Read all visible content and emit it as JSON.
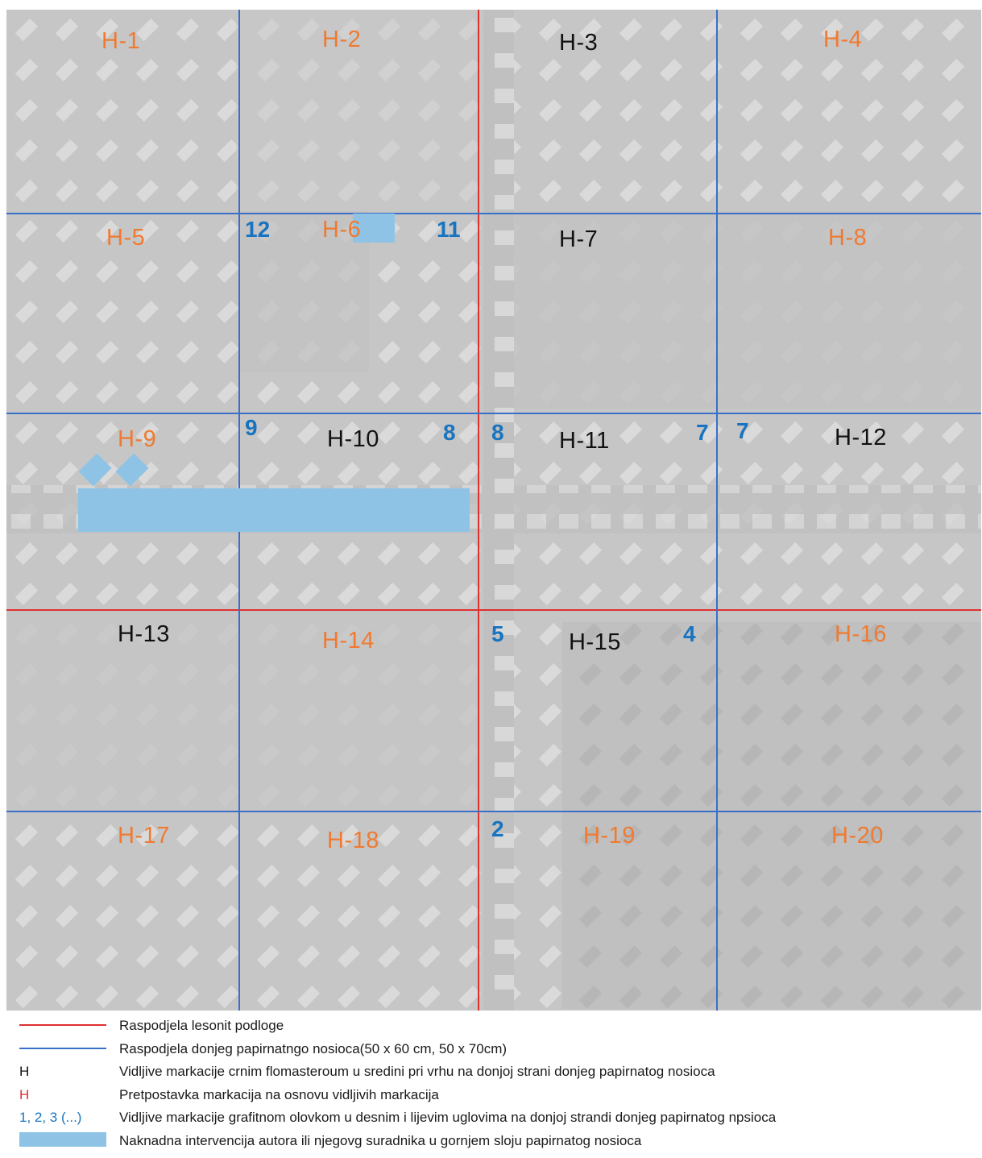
{
  "colors": {
    "red_line": "#e03030",
    "blue_line": "#3a6fc9",
    "orange_label": "#f07a30",
    "black_label": "#111111",
    "blue_number": "#1874c0",
    "intervention": "#8ec3e6"
  },
  "labels": [
    {
      "id": "H-1",
      "text": "H-1",
      "color": "orange"
    },
    {
      "id": "H-2",
      "text": "H-2",
      "color": "orange"
    },
    {
      "id": "H-3",
      "text": "H-3",
      "color": "black"
    },
    {
      "id": "H-4",
      "text": "H-4",
      "color": "orange"
    },
    {
      "id": "H-5",
      "text": "H-5",
      "color": "orange"
    },
    {
      "id": "H-6",
      "text": "H-6",
      "color": "orange"
    },
    {
      "id": "H-7",
      "text": "H-7",
      "color": "black"
    },
    {
      "id": "H-8",
      "text": "H-8",
      "color": "orange"
    },
    {
      "id": "H-9",
      "text": "H-9",
      "color": "orange"
    },
    {
      "id": "H-10",
      "text": "H-10",
      "color": "black"
    },
    {
      "id": "H-11",
      "text": "H-11",
      "color": "black"
    },
    {
      "id": "H-12",
      "text": "H-12",
      "color": "black"
    },
    {
      "id": "H-13",
      "text": "H-13",
      "color": "black"
    },
    {
      "id": "H-14",
      "text": "H-14",
      "color": "orange"
    },
    {
      "id": "H-15",
      "text": "H-15",
      "color": "black"
    },
    {
      "id": "H-16",
      "text": "H-16",
      "color": "orange"
    },
    {
      "id": "H-17",
      "text": "H-17",
      "color": "orange"
    },
    {
      "id": "H-18",
      "text": "H-18",
      "color": "orange"
    },
    {
      "id": "H-19",
      "text": "H-19",
      "color": "orange"
    },
    {
      "id": "H-20",
      "text": "H-20",
      "color": "orange"
    }
  ],
  "numbers": [
    "12",
    "11",
    "9",
    "8",
    "8",
    "7",
    "7",
    "5",
    "4",
    "2"
  ],
  "legend": [
    {
      "symbol": "red-line",
      "symbol_text": "",
      "text": "Raspodjela lesonit podloge"
    },
    {
      "symbol": "blue-line",
      "symbol_text": "",
      "text": "Raspodjela donjeg papirnatngo nosioca(50 x 60 cm, 50 x 70cm)"
    },
    {
      "symbol": "text-black",
      "symbol_text": "H",
      "text": "Vidljive markacije crnim flomasteroum u sredini pri vrhu na donjoj strani donjeg papirnatog nosioca"
    },
    {
      "symbol": "text-red",
      "symbol_text": "H",
      "text": "Pretpostavka markacija na osnovu vidljivih markacija"
    },
    {
      "symbol": "text-blue",
      "symbol_text": "1, 2, 3 (...)",
      "text": "Vidljive markacije grafitnom olovkom u desnim i lijevim uglovima na donjoj strandi donjeg papirnatog npsioca"
    },
    {
      "symbol": "blue-box",
      "symbol_text": "",
      "text": "Naknadna intervencija autora ili njegovg suradnika u gornjem sloju papirnatog nosioca"
    }
  ]
}
